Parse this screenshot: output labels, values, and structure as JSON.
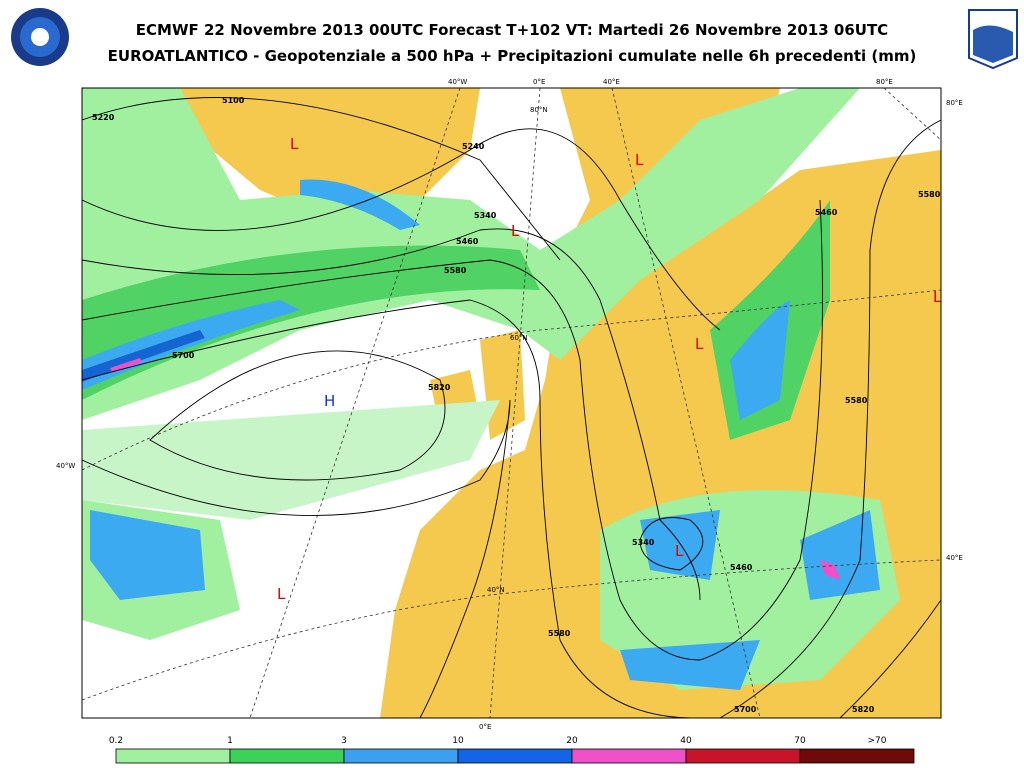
{
  "header": {
    "line1": "ECMWF 22 Novembre 2013 00UTC Forecast T+102 VT: Martedi 26 Novembre 2013 06UTC",
    "line2": "EUROATLANTICO - Geopotenziale a 500 hPa + Precipitazioni cumulate nelle 6h precedenti (mm)"
  },
  "map": {
    "contours": [
      "5100",
      "5220",
      "5240",
      "5340",
      "5460",
      "5580",
      "5700",
      "5820",
      "5340",
      "5460",
      "5580",
      "5700",
      "5820",
      "5460",
      "5580",
      "5580"
    ],
    "inner_coords": [
      "80°N",
      "60°N",
      "40°N"
    ],
    "edge_coords": [
      "40°W",
      "0°E",
      "40°E",
      "80°E",
      "80°E",
      "40°W",
      "40°E",
      "0°E"
    ],
    "centers": [
      "L",
      "L",
      "L",
      "L",
      "L",
      "L",
      "L",
      "H"
    ]
  },
  "legend": {
    "labels": [
      "0.2",
      "1",
      "3",
      "10",
      "20",
      "40",
      "70",
      ">70"
    ],
    "colors": [
      "#a0f0a0",
      "#3cd25a",
      "#3ca0f0",
      "#1464e6",
      "#f050c8",
      "#c81428",
      "#6e0a0a"
    ]
  }
}
